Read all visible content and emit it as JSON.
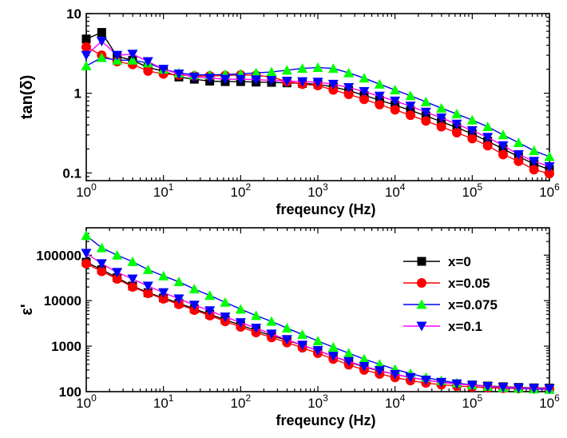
{
  "figure": {
    "colors": {
      "x0": "#000000",
      "x005": "#ff0000",
      "x0075": "#0000ff",
      "x01": "#ff00ff"
    },
    "marker_colors": {
      "x0": "#000000",
      "x005": "#ff0000",
      "x0075": "#00ff00",
      "x01": "#0000ff"
    }
  },
  "chart_data": [
    {
      "type": "line",
      "x_scale": "log",
      "y_scale": "log",
      "xlabel": "freqeuncy (Hz)",
      "ylabel": "tan(δ)",
      "xlim": [
        1,
        1000000
      ],
      "ylim": [
        0.08,
        10
      ],
      "x_ticks": [
        "10^0",
        "10^1",
        "10^2",
        "10^3",
        "10^4",
        "10^5",
        "10^6"
      ],
      "y_ticks": [
        "0.1",
        "1",
        "10"
      ],
      "x": [
        1,
        1.585,
        2.512,
        3.981,
        6.31,
        10,
        15.85,
        25.12,
        39.81,
        63.1,
        100,
        158.5,
        251.2,
        398.1,
        631,
        1000,
        1585,
        2512,
        3981,
        6310,
        10000,
        15850,
        25120,
        39810,
        63100,
        100000,
        158500,
        251200,
        398100,
        631000,
        1000000
      ],
      "series": [
        {
          "name": "x=0",
          "marker": "square",
          "values": [
            4.8,
            5.8,
            2.9,
            2.6,
            2.1,
            1.9,
            1.6,
            1.5,
            1.42,
            1.4,
            1.4,
            1.38,
            1.37,
            1.35,
            1.33,
            1.3,
            1.2,
            1.08,
            0.94,
            0.82,
            0.71,
            0.61,
            0.52,
            0.44,
            0.37,
            0.31,
            0.25,
            0.2,
            0.16,
            0.13,
            0.11
          ]
        },
        {
          "name": "x=0.05",
          "marker": "circle",
          "values": [
            3.8,
            3.0,
            2.5,
            2.3,
            1.9,
            1.75,
            1.7,
            1.65,
            1.65,
            1.67,
            1.7,
            1.68,
            1.6,
            1.4,
            1.3,
            1.25,
            1.1,
            0.97,
            0.84,
            0.72,
            0.62,
            0.53,
            0.45,
            0.38,
            0.32,
            0.27,
            0.22,
            0.17,
            0.14,
            0.11,
            0.098
          ]
        },
        {
          "name": "x=0.075",
          "marker": "triangle-up",
          "values": [
            2.2,
            2.8,
            2.6,
            2.6,
            2.4,
            2.0,
            1.8,
            1.7,
            1.7,
            1.72,
            1.75,
            1.8,
            1.85,
            1.95,
            2.05,
            2.1,
            2.05,
            1.8,
            1.55,
            1.3,
            1.1,
            0.93,
            0.78,
            0.65,
            0.55,
            0.46,
            0.38,
            0.3,
            0.24,
            0.19,
            0.16
          ]
        },
        {
          "name": "x=0.1",
          "marker": "triangle-down",
          "values": [
            3.0,
            4.5,
            3.0,
            3.1,
            2.5,
            2.0,
            1.75,
            1.6,
            1.55,
            1.5,
            1.5,
            1.48,
            1.45,
            1.42,
            1.4,
            1.38,
            1.3,
            1.18,
            1.05,
            0.92,
            0.8,
            0.69,
            0.58,
            0.49,
            0.41,
            0.34,
            0.28,
            0.22,
            0.17,
            0.14,
            0.12
          ]
        }
      ]
    },
    {
      "type": "line",
      "x_scale": "log",
      "y_scale": "log",
      "xlabel": "freqeuncy (Hz)",
      "ylabel": "ε'",
      "xlim": [
        1,
        1000000
      ],
      "ylim": [
        100,
        400000
      ],
      "x_ticks": [
        "10^0",
        "10^1",
        "10^2",
        "10^3",
        "10^4",
        "10^5",
        "10^6"
      ],
      "y_ticks": [
        "100",
        "1000",
        "10000",
        "100000"
      ],
      "legend": "right",
      "x": [
        1,
        1.585,
        2.512,
        3.981,
        6.31,
        10,
        15.85,
        25.12,
        39.81,
        63.1,
        100,
        158.5,
        251.2,
        398.1,
        631,
        1000,
        1585,
        2512,
        3981,
        6310,
        10000,
        15850,
        25120,
        39810,
        63100,
        100000,
        158500,
        251200,
        398100,
        631000,
        1000000
      ],
      "series": [
        {
          "name": "x=0",
          "marker": "square",
          "values": [
            70000,
            48000,
            32000,
            21000,
            15000,
            11500,
            8800,
            6600,
            5000,
            3800,
            2900,
            2200,
            1700,
            1350,
            1050,
            800,
            600,
            450,
            350,
            285,
            240,
            205,
            180,
            160,
            148,
            140,
            133,
            128,
            124,
            121,
            120
          ]
        },
        {
          "name": "x=0.05",
          "marker": "circle",
          "values": [
            65000,
            44000,
            30000,
            20000,
            14500,
            11000,
            8300,
            6200,
            4700,
            3500,
            2650,
            2000,
            1550,
            1200,
            920,
            700,
            520,
            390,
            300,
            245,
            205,
            175,
            155,
            142,
            133,
            127,
            122,
            119,
            117,
            116,
            115
          ]
        },
        {
          "name": "x=0.075",
          "marker": "triangle-up",
          "values": [
            270000,
            145000,
            100000,
            72000,
            48000,
            35000,
            26000,
            18000,
            13000,
            9200,
            6500,
            4700,
            3500,
            2500,
            1800,
            1300,
            950,
            700,
            520,
            400,
            310,
            250,
            205,
            175,
            155,
            140,
            130,
            123,
            118,
            114,
            112
          ]
        },
        {
          "name": "x=0.1",
          "marker": "triangle-down",
          "values": [
            110000,
            65000,
            42000,
            30000,
            21000,
            15000,
            11000,
            8000,
            6000,
            4400,
            3300,
            2500,
            1850,
            1400,
            1050,
            800,
            600,
            460,
            360,
            290,
            240,
            205,
            180,
            160,
            148,
            138,
            130,
            125,
            121,
            118,
            116
          ]
        }
      ]
    }
  ]
}
